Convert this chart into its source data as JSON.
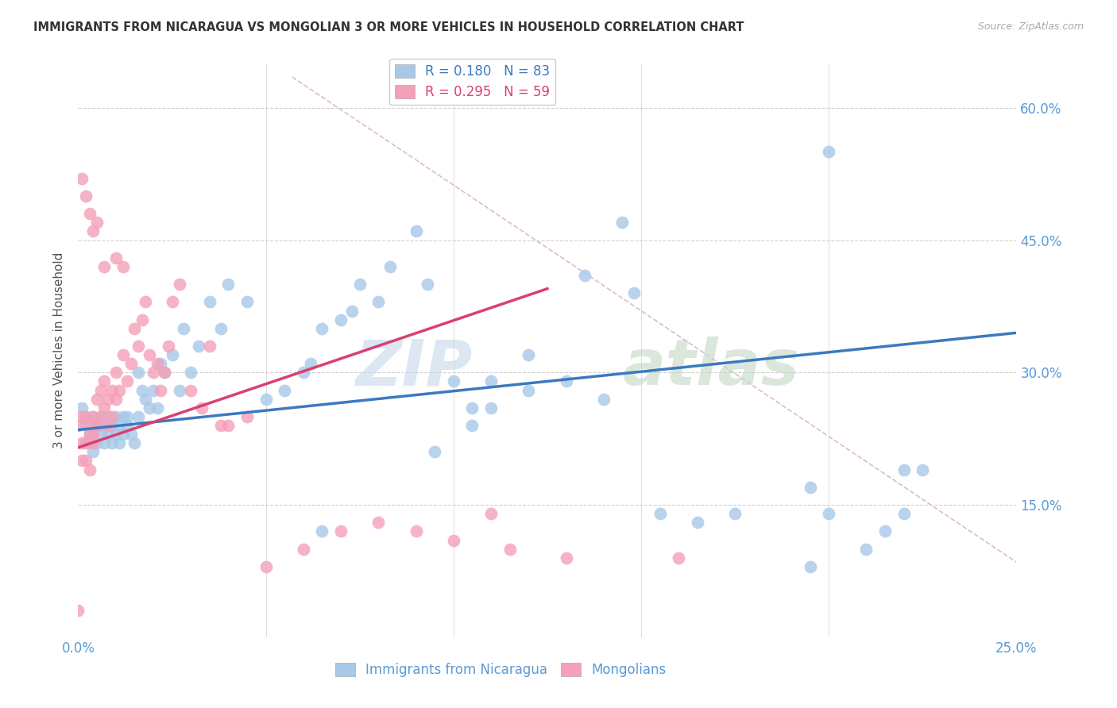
{
  "title": "IMMIGRANTS FROM NICARAGUA VS MONGOLIAN 3 OR MORE VEHICLES IN HOUSEHOLD CORRELATION CHART",
  "source": "Source: ZipAtlas.com",
  "ylabel": "3 or more Vehicles in Household",
  "xlim": [
    0.0,
    0.25
  ],
  "ylim": [
    0.0,
    0.65
  ],
  "x_tick_positions": [
    0.0,
    0.05,
    0.1,
    0.15,
    0.2,
    0.25
  ],
  "x_tick_labels": [
    "0.0%",
    "",
    "",
    "",
    "",
    "25.0%"
  ],
  "y_tick_positions": [
    0.0,
    0.15,
    0.3,
    0.45,
    0.6
  ],
  "y_tick_labels_right": [
    "",
    "15.0%",
    "30.0%",
    "45.0%",
    "60.0%"
  ],
  "dot_color_blue": "#a8c8e8",
  "dot_color_pink": "#f4a0b8",
  "line_color_blue": "#3a7abf",
  "line_color_pink": "#d94070",
  "diag_color": "#cccccc",
  "background_color": "#ffffff",
  "blue_line_x": [
    0.0,
    0.25
  ],
  "blue_line_y": [
    0.235,
    0.345
  ],
  "pink_line_x": [
    0.0,
    0.125
  ],
  "pink_line_y": [
    0.215,
    0.395
  ],
  "diag_line_x": [
    0.057,
    0.25
  ],
  "diag_line_y": [
    0.635,
    0.085
  ],
  "blue_scatter_x": [
    0.001,
    0.002,
    0.002,
    0.003,
    0.003,
    0.004,
    0.004,
    0.005,
    0.005,
    0.006,
    0.006,
    0.007,
    0.007,
    0.008,
    0.008,
    0.009,
    0.009,
    0.01,
    0.01,
    0.011,
    0.011,
    0.012,
    0.012,
    0.013,
    0.013,
    0.014,
    0.015,
    0.016,
    0.016,
    0.017,
    0.018,
    0.019,
    0.02,
    0.021,
    0.022,
    0.023,
    0.025,
    0.027,
    0.028,
    0.03,
    0.032,
    0.035,
    0.038,
    0.04,
    0.045,
    0.05,
    0.055,
    0.06,
    0.065,
    0.07,
    0.075,
    0.08,
    0.09,
    0.1,
    0.11,
    0.12,
    0.13,
    0.14,
    0.155,
    0.165,
    0.175,
    0.195,
    0.2,
    0.21,
    0.22,
    0.062,
    0.073,
    0.083,
    0.093,
    0.105,
    0.145,
    0.2,
    0.215,
    0.225,
    0.105,
    0.12,
    0.135,
    0.148,
    0.065,
    0.095,
    0.11,
    0.195,
    0.22
  ],
  "blue_scatter_y": [
    0.26,
    0.25,
    0.24,
    0.23,
    0.22,
    0.21,
    0.25,
    0.24,
    0.22,
    0.23,
    0.25,
    0.24,
    0.22,
    0.23,
    0.25,
    0.24,
    0.22,
    0.25,
    0.23,
    0.24,
    0.22,
    0.25,
    0.23,
    0.24,
    0.25,
    0.23,
    0.22,
    0.25,
    0.3,
    0.28,
    0.27,
    0.26,
    0.28,
    0.26,
    0.31,
    0.3,
    0.32,
    0.28,
    0.35,
    0.3,
    0.33,
    0.38,
    0.35,
    0.4,
    0.38,
    0.27,
    0.28,
    0.3,
    0.35,
    0.36,
    0.4,
    0.38,
    0.46,
    0.29,
    0.29,
    0.28,
    0.29,
    0.27,
    0.14,
    0.13,
    0.14,
    0.17,
    0.14,
    0.1,
    0.19,
    0.31,
    0.37,
    0.42,
    0.4,
    0.26,
    0.47,
    0.55,
    0.12,
    0.19,
    0.24,
    0.32,
    0.41,
    0.39,
    0.12,
    0.21,
    0.26,
    0.08,
    0.14
  ],
  "pink_scatter_x": [
    0.0,
    0.0,
    0.001,
    0.001,
    0.001,
    0.002,
    0.002,
    0.002,
    0.003,
    0.003,
    0.003,
    0.004,
    0.004,
    0.004,
    0.005,
    0.005,
    0.005,
    0.006,
    0.006,
    0.007,
    0.007,
    0.008,
    0.008,
    0.009,
    0.009,
    0.01,
    0.01,
    0.011,
    0.012,
    0.013,
    0.014,
    0.015,
    0.016,
    0.017,
    0.018,
    0.019,
    0.02,
    0.021,
    0.022,
    0.023,
    0.024,
    0.025,
    0.027,
    0.03,
    0.033,
    0.035,
    0.038,
    0.04,
    0.045,
    0.05,
    0.06,
    0.07,
    0.08,
    0.09,
    0.1,
    0.11,
    0.115,
    0.13,
    0.16
  ],
  "pink_scatter_y": [
    0.03,
    0.24,
    0.22,
    0.2,
    0.25,
    0.22,
    0.2,
    0.25,
    0.19,
    0.23,
    0.24,
    0.25,
    0.23,
    0.22,
    0.24,
    0.27,
    0.24,
    0.25,
    0.28,
    0.26,
    0.29,
    0.27,
    0.24,
    0.28,
    0.25,
    0.27,
    0.3,
    0.28,
    0.32,
    0.29,
    0.31,
    0.35,
    0.33,
    0.36,
    0.38,
    0.32,
    0.3,
    0.31,
    0.28,
    0.3,
    0.33,
    0.38,
    0.4,
    0.28,
    0.26,
    0.33,
    0.24,
    0.24,
    0.25,
    0.08,
    0.1,
    0.12,
    0.13,
    0.12,
    0.11,
    0.14,
    0.1,
    0.09,
    0.09
  ],
  "pink_outlier_x": [
    0.001,
    0.002,
    0.003,
    0.004,
    0.005,
    0.007,
    0.01,
    0.012
  ],
  "pink_outlier_y": [
    0.52,
    0.5,
    0.48,
    0.46,
    0.47,
    0.42,
    0.43,
    0.42
  ],
  "watermark_zip_color": "#c5d8ec",
  "watermark_atlas_color": "#c5d8c5",
  "grid_color": "#d0d0d0",
  "tick_color": "#5b9bd5",
  "title_color": "#333333",
  "source_color": "#aaaaaa",
  "ylabel_color": "#555555"
}
